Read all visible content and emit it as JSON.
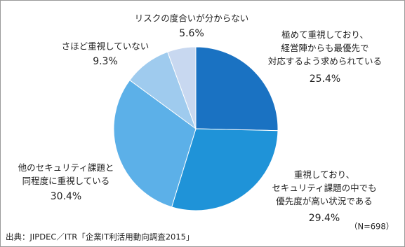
{
  "chart_data": {
    "type": "pie",
    "categories": [
      "極めて重視しており、\n経営陣からも最優先で\n対応するよう求められている",
      "重視しており、\nセキュリティ課題の中でも\n優先度が高い状況である",
      "他のセキュリティ課題と\n同程度に重視している",
      "さほど重視していない",
      "リスクの度合いが分からない"
    ],
    "values": [
      25.4,
      29.4,
      30.4,
      9.3,
      5.6
    ],
    "value_labels": [
      "25.4%",
      "29.4%",
      "30.4%",
      "9.3%",
      "5.6%"
    ],
    "colors": [
      "#1a72c2",
      "#1f93d8",
      "#5cb0e8",
      "#9fcbee",
      "#c8d8f0"
    ],
    "source": "出典：JIPDEC／ITR「企業IT利活用動向調査2015」",
    "note": "（N=698）"
  }
}
